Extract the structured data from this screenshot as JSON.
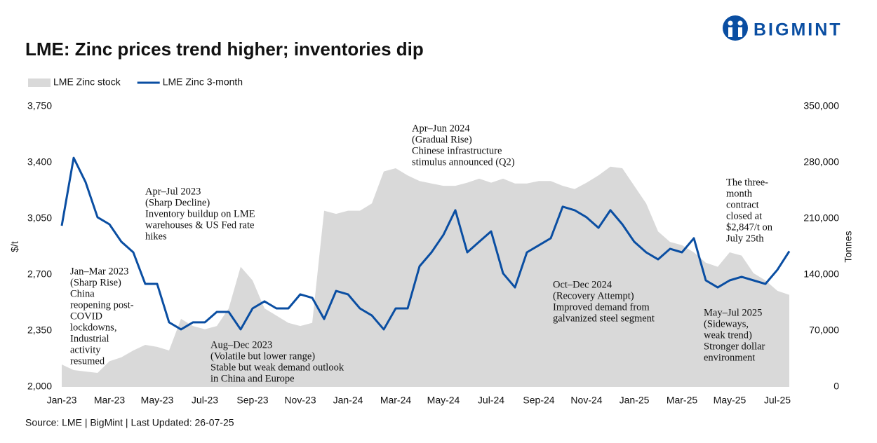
{
  "brand": "BIGMINT",
  "chart_data": {
    "type": "line",
    "title": "LME: Zinc prices trend higher; inventories dip",
    "source": "Source: LME | BigMint | Last Updated: 26-07-25",
    "ylabel": "$/t",
    "y2label": "Tonnes",
    "categories": [
      "Jan-23",
      null,
      null,
      null,
      "Mar-23",
      null,
      null,
      null,
      "May-23",
      null,
      null,
      null,
      "Jul-23",
      null,
      null,
      null,
      "Sep-23",
      null,
      null,
      null,
      "Nov-23",
      null,
      null,
      null,
      "Jan-24",
      null,
      null,
      null,
      "Mar-24",
      null,
      null,
      null,
      "May-24",
      null,
      null,
      null,
      "Jul-24",
      null,
      null,
      null,
      "Sep-24",
      null,
      null,
      null,
      "Nov-24",
      null,
      null,
      null,
      "Jan-25",
      null,
      null,
      null,
      "Mar-25",
      null,
      null,
      null,
      "May-25",
      null,
      null,
      null,
      "Jul-25",
      null
    ],
    "series": [
      {
        "name": "LME Zinc stock",
        "type": "area",
        "axis": "y2",
        "color": "#d9d9d9",
        "values": [
          28000,
          21000,
          19250,
          17500,
          32000,
          37000,
          45500,
          52500,
          50000,
          45500,
          85000,
          76000,
          72000,
          76000,
          98000,
          150000,
          133000,
          98000,
          89000,
          80000,
          76000,
          80000,
          220000,
          216000,
          220000,
          220000,
          229000,
          269000,
          273000,
          264000,
          257000,
          254000,
          251000,
          251000,
          255000,
          260000,
          255000,
          260000,
          254000,
          254000,
          257000,
          257000,
          251000,
          247000,
          255000,
          264000,
          275000,
          273000,
          251000,
          229000,
          194000,
          181000,
          177000,
          168000,
          155000,
          150000,
          168000,
          164000,
          142000,
          133000,
          120000,
          115000
        ]
      },
      {
        "name": "LME Zinc 3-month",
        "type": "line",
        "color": "#0a4ea2",
        "values": [
          3006,
          3430,
          3278,
          3059,
          3015,
          2906,
          2840,
          2643,
          2643,
          2403,
          2359,
          2403,
          2403,
          2468,
          2468,
          2359,
          2490,
          2534,
          2490,
          2490,
          2578,
          2556,
          2424,
          2599,
          2578,
          2490,
          2446,
          2359,
          2490,
          2490,
          2753,
          2840,
          2949,
          3103,
          2840,
          2906,
          2971,
          2709,
          2621,
          2840,
          2884,
          2928,
          3125,
          3103,
          3059,
          2993,
          3103,
          3015,
          2906,
          2840,
          2796,
          2862,
          2840,
          2928,
          2665,
          2621,
          2665,
          2687,
          2665,
          2643,
          2731,
          2847
        ]
      }
    ],
    "ylim": [
      2000,
      3750
    ],
    "yticks": [
      {
        "value": 2000,
        "label": "2,000"
      },
      {
        "value": 2350,
        "label": "2,350"
      },
      {
        "value": 2700,
        "label": "2,700"
      },
      {
        "value": 3050,
        "label": "3,050"
      },
      {
        "value": 3400,
        "label": "3,400"
      },
      {
        "value": 3750,
        "label": "3,750"
      }
    ],
    "y2lim": [
      0,
      350000
    ],
    "y2ticks": [
      0,
      {
        "value": 70000,
        "label": "70,000"
      },
      {
        "value": 140000,
        "label": "140,000"
      },
      {
        "value": 210000,
        "label": "210,000"
      },
      {
        "value": 280000,
        "label": "280,000"
      },
      {
        "value": 350000,
        "label": "350,000"
      }
    ],
    "legend": "top-left",
    "annotations": [
      [
        "Jan–Mar 2023",
        "(Sharp Rise)",
        "China",
        "reopening post-",
        "COVID",
        "lockdowns,",
        "Industrial",
        "activity",
        "resumed"
      ],
      [
        "Apr–Jul 2023",
        " (Sharp Decline)",
        "Inventory buildup on LME",
        "warehouses & US Fed rate",
        "hikes"
      ],
      [
        "Aug–Dec 2023",
        "(Volatile but lower range)",
        "Stable but weak demand outlook",
        "in China and Europe"
      ],
      [
        "Apr–Jun 2024",
        "(Gradual Rise)",
        "Chinese infrastructure",
        "stimulus announced (Q2)"
      ],
      [
        "Oct–Dec 2024",
        "(Recovery Attempt)",
        "Improved demand from",
        "galvanized steel segment"
      ],
      [
        "May–Jul 2025",
        "(Sideways,",
        "weak trend)",
        "Stronger dollar",
        "environment"
      ],
      [
        "The three-",
        "month",
        "contract",
        "closed at",
        "$2,847/t on",
        "July 25th"
      ]
    ]
  }
}
